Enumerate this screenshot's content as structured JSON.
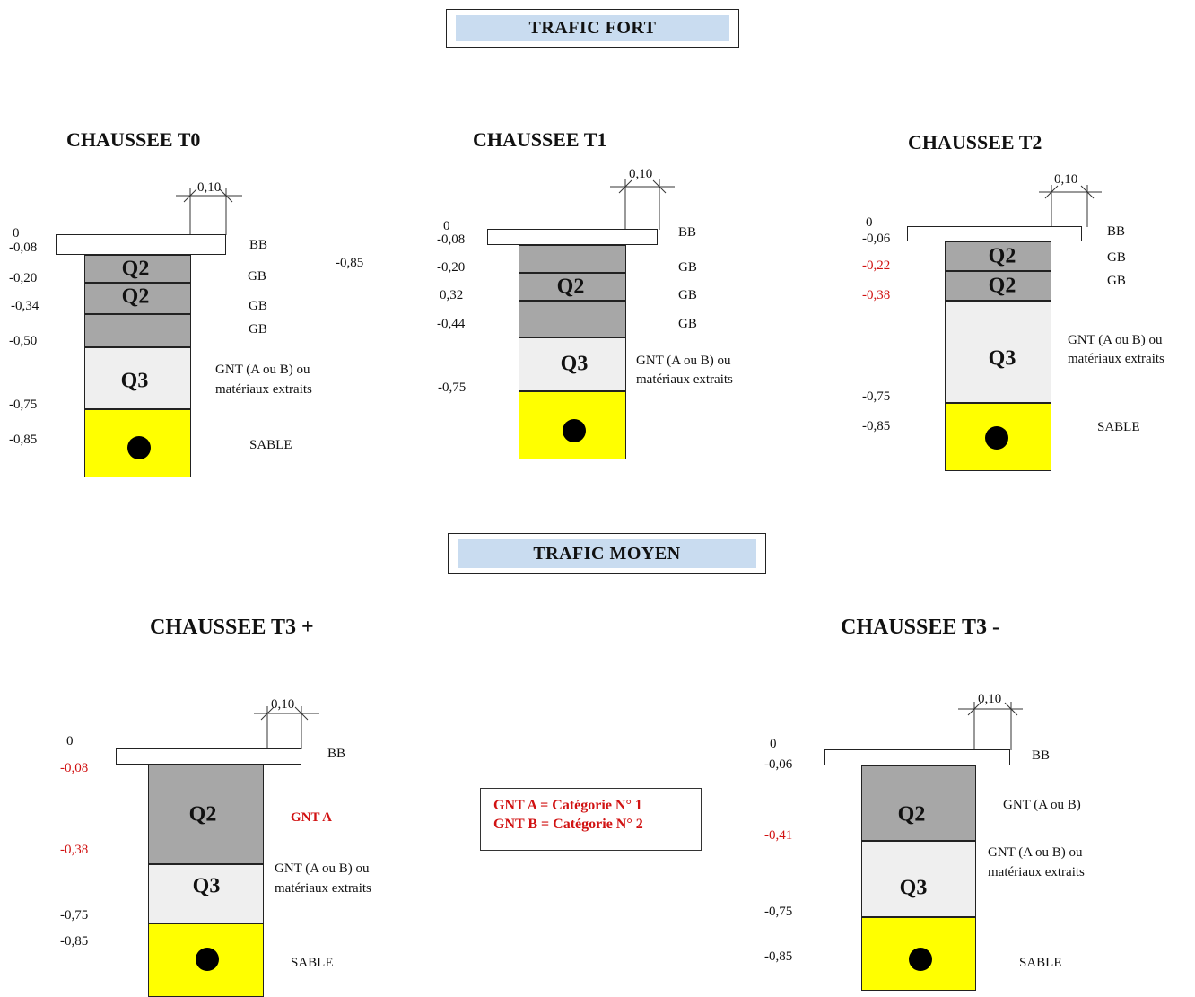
{
  "banners": {
    "heavy": "TRAFIC FORT",
    "medium": "TRAFIC MOYEN"
  },
  "sections": {
    "t0": {
      "title": "CHAUSSEE T0",
      "width_label": "0,10",
      "depths": [
        "0",
        "-0,08",
        "-0,20",
        "-0,34",
        "-0,50",
        "-0,75",
        "-0,85"
      ],
      "codes": [
        "Q2",
        "Q2",
        "Q3"
      ],
      "materials": [
        "BB",
        "GB",
        "GB",
        "GB",
        "GNT (A ou B) ou",
        "matériaux extraits",
        "SABLE"
      ],
      "stray_label": "-0,85"
    },
    "t1": {
      "title": "CHAUSSEE T1",
      "width_label": "0,10",
      "depths": [
        "0",
        "-0,08",
        "-0,20",
        "0,32",
        "-0,44",
        "-0,75"
      ],
      "codes": [
        "Q2",
        "Q3"
      ],
      "materials": [
        "BB",
        "GB",
        "GB",
        "GB",
        "GNT (A ou B) ou",
        "matériaux extraits"
      ]
    },
    "t2": {
      "title": "CHAUSSEE T2",
      "width_label": "0,10",
      "depths": [
        "0",
        "-0,06",
        "-0,22",
        "-0,38",
        "-0,75",
        "-0,85"
      ],
      "codes": [
        "Q2",
        "Q2",
        "Q3"
      ],
      "materials": [
        "BB",
        "GB",
        "GB",
        "GNT (A ou B) ou",
        "matériaux extraits",
        "SABLE"
      ]
    },
    "t3plus": {
      "title": "CHAUSSEE T3 +",
      "width_label": "0,10",
      "depths": [
        "0",
        "-0,08",
        "-0,38",
        "-0,75",
        "-0,85"
      ],
      "codes": [
        "Q2",
        "Q3"
      ],
      "materials": [
        "BB",
        "GNT  A",
        "GNT (A ou B) ou",
        "matériaux extraits",
        "SABLE"
      ]
    },
    "t3minus": {
      "title": "CHAUSSEE T3 -",
      "width_label": "0,10",
      "depths": [
        "0",
        "-0,06",
        "-0,41",
        "-0,75",
        "-0,85"
      ],
      "codes": [
        "Q2",
        "Q3"
      ],
      "materials": [
        "BB",
        "GNT (A ou B)",
        "GNT (A ou B) ou",
        "matériaux extraits",
        "SABLE"
      ]
    }
  },
  "legend": {
    "line1": "GNT A = Catégorie N° 1",
    "line2": "GNT B = Catégorie N° 2"
  },
  "colors": {
    "banner_fill": "#c9dcf0",
    "gb_fill": "#a7a7a7",
    "gnt_fill": "#efefef",
    "sand_fill": "#ffff00",
    "highlight_red": "#d11212"
  }
}
